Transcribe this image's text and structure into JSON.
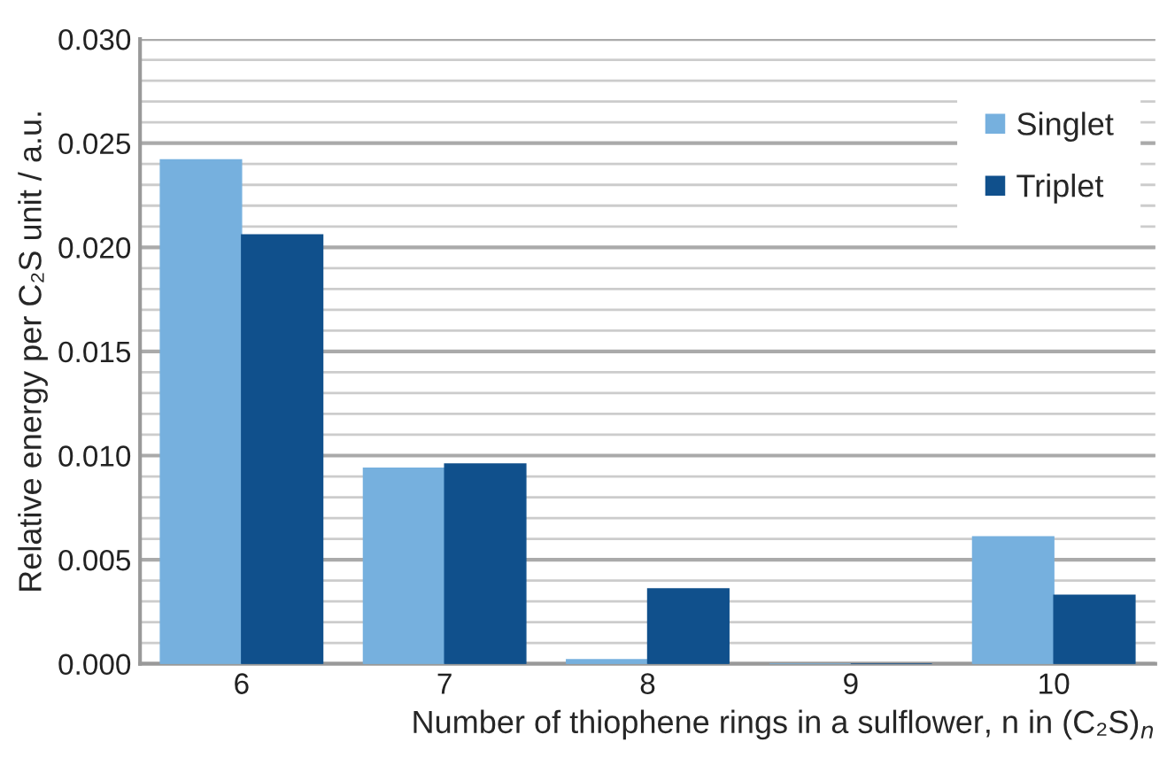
{
  "chart_data": {
    "type": "bar",
    "xlabel": "Number of thiophene rings in a sulflower, n in (C₂S)$_{n}$",
    "ylabel": "Relative energy per C₂S unit / a.u.",
    "categories": [
      "6",
      "7",
      "8",
      "9",
      "10"
    ],
    "series": [
      {
        "name": "Singlet",
        "color": "#76b0de",
        "values": [
          0.0242,
          0.0094,
          0.0002,
          0,
          0.0061
        ]
      },
      {
        "name": "Triplet",
        "color": "#10508c",
        "values": [
          0.0206,
          0.0096,
          0.0036,
          0,
          0.0033
        ]
      }
    ],
    "ylim": [
      0,
      0.03
    ],
    "yticks": [
      {
        "value": 0,
        "label": "0.000"
      },
      {
        "value": 0.001,
        "label": null
      },
      {
        "value": 0.002,
        "label": null
      },
      {
        "value": 0.003,
        "label": null
      },
      {
        "value": 0.004,
        "label": null
      },
      {
        "value": 0.005,
        "label": "0.005"
      },
      {
        "value": 0.006,
        "label": null
      },
      {
        "value": 0.007,
        "label": null
      },
      {
        "value": 0.008,
        "label": null
      },
      {
        "value": 0.009,
        "label": null
      },
      {
        "value": 0.01,
        "label": "0.010"
      },
      {
        "value": 0.011,
        "label": null
      },
      {
        "value": 0.012,
        "label": null
      },
      {
        "value": 0.013,
        "label": null
      },
      {
        "value": 0.014,
        "label": null
      },
      {
        "value": 0.015,
        "label": "0.015"
      },
      {
        "value": 0.016,
        "label": null
      },
      {
        "value": 0.017,
        "label": null
      },
      {
        "value": 0.018,
        "label": null
      },
      {
        "value": 0.019,
        "label": null
      },
      {
        "value": 0.02,
        "label": "0.020"
      },
      {
        "value": 0.021,
        "label": null
      },
      {
        "value": 0.022,
        "label": null
      },
      {
        "value": 0.023,
        "label": null
      },
      {
        "value": 0.024,
        "label": null
      },
      {
        "value": 0.025,
        "label": "0.025"
      },
      {
        "value": 0.026,
        "label": null
      },
      {
        "value": 0.027,
        "label": null
      },
      {
        "value": 0.028,
        "label": null
      },
      {
        "value": 0.029,
        "label": null
      },
      {
        "value": 0.03,
        "label": "0.030"
      }
    ],
    "grid": "y",
    "legend": "top right"
  }
}
